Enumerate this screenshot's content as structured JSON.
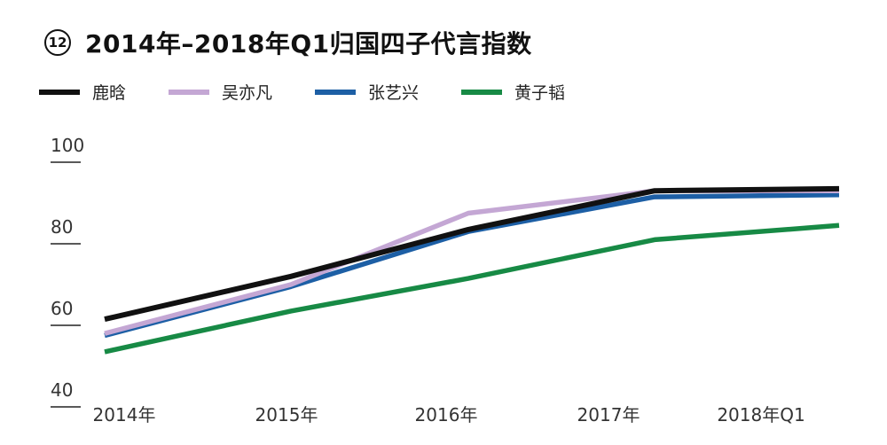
{
  "header": {
    "badge": "12",
    "title": "2014年–2018年Q1归国四子代言指数"
  },
  "chart_data": {
    "type": "line",
    "title": "2014年–2018年Q1归国四子代言指数",
    "categories": [
      "2014年",
      "2015年",
      "2016年",
      "2017年",
      "2018年Q1"
    ],
    "yticks": [
      40,
      60,
      80,
      100
    ],
    "ylim": [
      40,
      100
    ],
    "x": [
      0,
      1.15,
      2.15,
      3.05,
      4.2
    ],
    "series": [
      {
        "name": "鹿晗",
        "color": "#111111",
        "values": [
          61.5,
          72,
          83.5,
          93,
          93.5
        ]
      },
      {
        "name": "吴亦凡",
        "color": "#c4a7d4",
        "values": [
          58,
          70,
          87.5,
          93,
          93
        ]
      },
      {
        "name": "张艺兴",
        "color": "#1d5fa5",
        "values": [
          57.5,
          69.5,
          83,
          91.5,
          92
        ]
      },
      {
        "name": "黄子韬",
        "color": "#178a45",
        "values": [
          53.5,
          63.5,
          71.5,
          81,
          84.5
        ]
      }
    ]
  }
}
